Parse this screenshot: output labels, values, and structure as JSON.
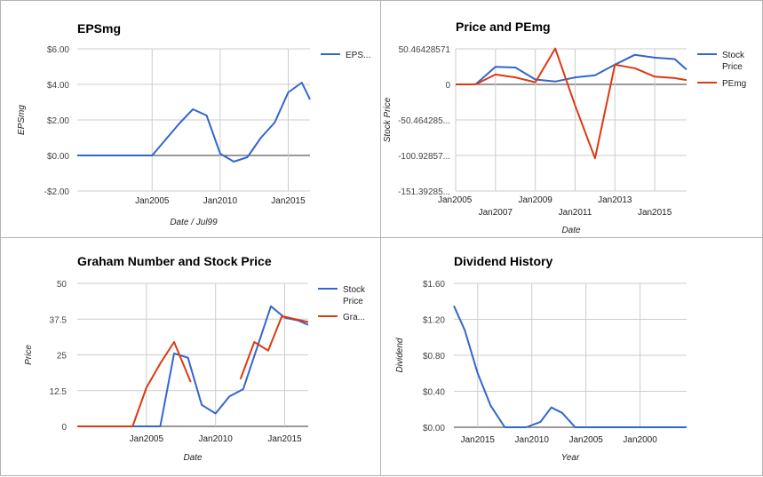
{
  "chart_data": [
    {
      "type": "line",
      "title": "EPSmg",
      "xlabel": "Date / Jul99",
      "ylabel": "EPSmg",
      "xlim": [
        1999.5,
        2016.6
      ],
      "ylim": [
        -2,
        6
      ],
      "yticks": [
        -2,
        0,
        2,
        4,
        6
      ],
      "ytick_labels": [
        "-$2.00",
        "$0.00",
        "$2.00",
        "$4.00",
        "$6.00"
      ],
      "xticks": [
        2005,
        2010,
        2015
      ],
      "xtick_labels": [
        "Jan2005",
        "Jan2010",
        "Jan2015"
      ],
      "grid": true,
      "legend_position": "right",
      "series": [
        {
          "name": "EPS...",
          "color": "#3366cc",
          "points": [
            [
              1999.5,
              0
            ],
            [
              2005,
              0
            ],
            [
              2006,
              0.9
            ],
            [
              2007,
              1.8
            ],
            [
              2008,
              2.6
            ],
            [
              2009,
              2.25
            ],
            [
              2010,
              0.1
            ],
            [
              2011,
              -0.35
            ],
            [
              2012,
              -0.1
            ],
            [
              2013,
              1.0
            ],
            [
              2014,
              1.85
            ],
            [
              2015,
              3.55
            ],
            [
              2016,
              4.1
            ],
            [
              2016.6,
              3.15
            ]
          ]
        }
      ]
    },
    {
      "type": "line",
      "title": "Price and PEmg",
      "xlabel": "Date",
      "ylabel": "Stock Price",
      "xlim": [
        2005,
        2016.6
      ],
      "ylim": [
        -151.39285,
        50.46428571
      ],
      "yticks": [
        -151.39285,
        -100.92857,
        -50.464285,
        0,
        50.46428571
      ],
      "ytick_labels": [
        "-151.39285...",
        "-100.92857...",
        "-50.464285...",
        "0",
        "50.46428571"
      ],
      "xticks": [
        2005,
        2007,
        2009,
        2011,
        2013,
        2015
      ],
      "xtick_labels": [
        "Jan2005",
        "Jan2007",
        "Jan2009",
        "Jan2011",
        "Jan2013",
        "Jan2015"
      ],
      "grid": true,
      "legend_position": "right",
      "series": [
        {
          "name": "Stock Price",
          "color": "#3366cc",
          "points": [
            [
              2005,
              0
            ],
            [
              2006,
              0
            ],
            [
              2007,
              25
            ],
            [
              2008,
              24
            ],
            [
              2009,
              7
            ],
            [
              2010,
              4
            ],
            [
              2011,
              10
            ],
            [
              2012,
              13
            ],
            [
              2013,
              28
            ],
            [
              2014,
              42
            ],
            [
              2015,
              38
            ],
            [
              2016,
              36
            ],
            [
              2016.6,
              21
            ]
          ]
        },
        {
          "name": "PEmg",
          "color": "#dc3912",
          "points": [
            [
              2005,
              0
            ],
            [
              2006,
              0
            ],
            [
              2007,
              14
            ],
            [
              2008,
              10
            ],
            [
              2009,
              3
            ],
            [
              2010,
              51
            ],
            [
              2011,
              -30
            ],
            [
              2012,
              -105
            ],
            [
              2013,
              28
            ],
            [
              2014,
              23
            ],
            [
              2015,
              11
            ],
            [
              2016,
              9
            ],
            [
              2016.6,
              6
            ]
          ]
        }
      ]
    },
    {
      "type": "line",
      "title": "Graham Number and Stock Price",
      "xlabel": "Date",
      "ylabel": "Price",
      "xlim": [
        2000,
        2016.7
      ],
      "ylim": [
        0,
        50
      ],
      "yticks": [
        0,
        12.5,
        25,
        37.5,
        50
      ],
      "ytick_labels": [
        "0",
        "12.5",
        "25",
        "37.5",
        "50"
      ],
      "xticks": [
        2005,
        2010,
        2015
      ],
      "xtick_labels": [
        "Jan2005",
        "Jan2010",
        "Jan2015"
      ],
      "grid": true,
      "legend_position": "right",
      "series": [
        {
          "name": "Stock Price",
          "color": "#3366cc",
          "points": [
            [
              2000,
              0
            ],
            [
              2006,
              0
            ],
            [
              2007,
              25.5
            ],
            [
              2008,
              24
            ],
            [
              2009,
              7.5
            ],
            [
              2010,
              4.5
            ],
            [
              2011,
              10.5
            ],
            [
              2012,
              13
            ],
            [
              2013,
              27.5
            ],
            [
              2014,
              42
            ],
            [
              2015,
              38
            ],
            [
              2016,
              37
            ],
            [
              2016.7,
              35.5
            ]
          ]
        },
        {
          "name": "Gra...",
          "color": "#dc3912",
          "segments": [
            [
              [
                2000,
                0
              ],
              [
                2003,
                0
              ],
              [
                2004,
                0
              ],
              [
                2005,
                13.5
              ],
              [
                2006,
                22
              ],
              [
                2007,
                29.5
              ],
              [
                2008.2,
                15.5
              ]
            ],
            [
              [
                2011.8,
                16.5
              ],
              [
                2012.8,
                29.5
              ],
              [
                2013.8,
                26.5
              ],
              [
                2014.8,
                38.5
              ],
              [
                2016.7,
                36.5
              ]
            ]
          ]
        }
      ]
    },
    {
      "type": "line",
      "title": "Dividend History",
      "xlabel": "Year",
      "ylabel": "Dividend",
      "xlim": [
        2017.2,
        1995.7
      ],
      "ylim": [
        0,
        1.6
      ],
      "yticks": [
        0,
        0.4,
        0.8,
        1.2,
        1.6
      ],
      "ytick_labels": [
        "$0.00",
        "$0.40",
        "$0.80",
        "$1.20",
        "$1.60"
      ],
      "xticks": [
        2015,
        2010,
        2005,
        2000
      ],
      "xtick_labels": [
        "Jan2015",
        "Jan2010",
        "Jan2005",
        "Jan2000"
      ],
      "grid": true,
      "legend_position": "none",
      "series": [
        {
          "name": "",
          "color": "#3366cc",
          "points": [
            [
              2017.2,
              1.35
            ],
            [
              2016.2,
              1.08
            ],
            [
              2015,
              0.6
            ],
            [
              2013.8,
              0.24
            ],
            [
              2012.5,
              0
            ],
            [
              2010.5,
              0
            ],
            [
              2009.2,
              0.06
            ],
            [
              2008.2,
              0.22
            ],
            [
              2007.2,
              0.16
            ],
            [
              2006,
              0
            ],
            [
              1995.7,
              0
            ]
          ]
        }
      ]
    }
  ]
}
